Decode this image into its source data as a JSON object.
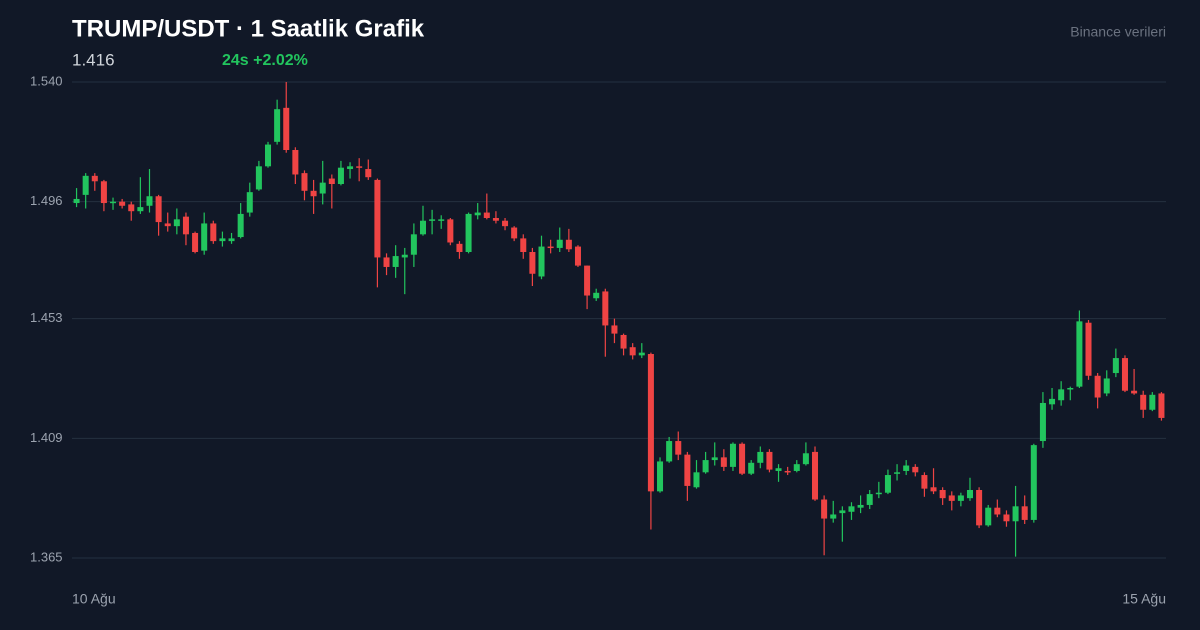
{
  "chart_data": {
    "type": "candlestick",
    "title": "TRUMP/USDT · 1 Saatlik Grafik",
    "price": "1.416",
    "change": "24s +2.02%",
    "source": "Binance verileri",
    "categories": [
      "10 Ağu",
      null,
      null,
      null,
      null,
      null,
      null,
      null,
      null,
      null,
      null,
      null,
      null,
      null,
      null,
      null,
      null,
      null,
      null,
      null,
      null,
      null,
      null,
      null,
      null,
      null,
      null,
      null,
      null,
      null,
      null,
      null,
      null,
      null,
      null,
      null,
      null,
      null,
      null,
      null,
      null,
      null,
      null,
      null,
      null,
      null,
      null,
      null,
      null,
      null,
      null,
      null,
      null,
      null,
      null,
      null,
      null,
      null,
      null,
      null,
      null,
      null,
      null,
      null,
      null,
      null,
      null,
      null,
      null,
      null,
      null,
      null,
      null,
      null,
      null,
      null,
      null,
      null,
      null,
      null,
      null,
      null,
      null,
      null,
      null,
      null,
      null,
      null,
      null,
      null,
      null,
      null,
      null,
      null,
      null,
      null,
      null,
      null,
      null,
      null,
      null,
      null,
      null,
      null,
      null,
      null,
      null,
      null,
      null,
      null,
      null,
      null,
      null,
      null,
      null,
      null,
      null,
      null,
      null,
      "15 Ağu"
    ],
    "open": [
      1.4955,
      1.4985,
      1.5055,
      1.5035,
      1.4955,
      1.496,
      1.495,
      1.4925,
      1.4945,
      1.498,
      1.488,
      1.487,
      1.4905,
      1.4845,
      1.478,
      1.488,
      1.4815,
      1.4815,
      1.483,
      1.492,
      1.5005,
      1.509,
      1.518,
      1.5305,
      1.515,
      1.5065,
      1.5,
      1.499,
      1.5045,
      1.5025,
      1.508,
      1.509,
      1.508,
      1.504,
      1.4755,
      1.472,
      1.4755,
      1.4765,
      1.484,
      1.489,
      1.489,
      1.4895,
      1.4805,
      1.4775,
      1.491,
      1.492,
      1.49,
      1.489,
      1.4865,
      1.4825,
      1.4775,
      1.4685,
      1.4795,
      1.479,
      1.482,
      1.4795,
      1.4725,
      1.4605,
      1.463,
      1.4505,
      1.447,
      1.4425,
      1.4395,
      1.44,
      1.3895,
      1.4005,
      1.408,
      1.403,
      1.391,
      1.3965,
      1.401,
      1.402,
      1.3985,
      1.407,
      1.396,
      1.4,
      1.404,
      1.397,
      1.397,
      1.397,
      1.3995,
      1.404,
      1.3865,
      1.3795,
      1.3815,
      1.382,
      1.3835,
      1.3845,
      1.3885,
      1.389,
      1.396,
      1.397,
      1.3985,
      1.3955,
      1.391,
      1.39,
      1.388,
      1.386,
      1.387,
      1.39,
      1.377,
      1.3835,
      1.381,
      1.3785,
      1.384,
      1.379,
      1.408,
      1.4215,
      1.423,
      1.427,
      1.428,
      1.4515,
      1.432,
      1.4255,
      1.433,
      1.4385,
      1.4265,
      1.425,
      1.4195,
      1.4255
    ],
    "high": [
      1.501,
      1.5065,
      1.5065,
      1.504,
      1.4975,
      1.497,
      1.496,
      1.505,
      1.508,
      1.4985,
      1.492,
      1.4935,
      1.492,
      1.485,
      1.492,
      1.489,
      1.485,
      1.4845,
      1.4955,
      1.503,
      1.511,
      1.518,
      1.5335,
      1.54,
      1.516,
      1.5075,
      1.504,
      1.511,
      1.506,
      1.511,
      1.5105,
      1.512,
      1.5115,
      1.5045,
      1.477,
      1.48,
      1.479,
      1.488,
      1.4945,
      1.493,
      1.491,
      1.49,
      1.4815,
      1.492,
      1.4955,
      1.499,
      1.4925,
      1.49,
      1.487,
      1.484,
      1.479,
      1.4835,
      1.482,
      1.4865,
      1.486,
      1.48,
      1.4725,
      1.464,
      1.464,
      1.453,
      1.4475,
      1.444,
      1.444,
      1.4405,
      1.402,
      1.4095,
      1.4115,
      1.404,
      1.401,
      1.404,
      1.4075,
      1.405,
      1.4075,
      1.4075,
      1.401,
      1.406,
      1.405,
      1.3995,
      1.3985,
      1.401,
      1.4075,
      1.406,
      1.388,
      1.386,
      1.384,
      1.3855,
      1.388,
      1.39,
      1.393,
      1.3975,
      1.3995,
      1.401,
      1.3995,
      1.3965,
      1.398,
      1.391,
      1.3895,
      1.389,
      1.3945,
      1.391,
      1.3845,
      1.3865,
      1.3825,
      1.3915,
      1.388,
      1.407,
      1.426,
      1.4275,
      1.43,
      1.428,
      1.456,
      1.4525,
      1.433,
      1.434,
      1.442,
      1.4395,
      1.4345,
      1.4265,
      1.426,
      1.426
    ],
    "low": [
      1.494,
      1.4935,
      1.5,
      1.4925,
      1.493,
      1.4935,
      1.489,
      1.4915,
      1.492,
      1.4835,
      1.485,
      1.484,
      1.48,
      1.477,
      1.4765,
      1.4805,
      1.4795,
      1.4805,
      1.4825,
      1.4905,
      1.5,
      1.5085,
      1.517,
      1.514,
      1.5025,
      1.4965,
      1.4915,
      1.495,
      1.4935,
      1.502,
      1.5045,
      1.5035,
      1.504,
      1.4645,
      1.469,
      1.468,
      1.462,
      1.472,
      1.4835,
      1.484,
      1.486,
      1.48,
      1.475,
      1.477,
      1.4895,
      1.4895,
      1.488,
      1.4855,
      1.4815,
      1.475,
      1.465,
      1.4675,
      1.477,
      1.4775,
      1.4775,
      1.472,
      1.4565,
      1.4595,
      1.439,
      1.444,
      1.4395,
      1.438,
      1.4385,
      1.3755,
      1.389,
      1.4,
      1.401,
      1.386,
      1.3905,
      1.396,
      1.399,
      1.397,
      1.397,
      1.3955,
      1.3955,
      1.398,
      1.3965,
      1.393,
      1.3955,
      1.3965,
      1.399,
      1.386,
      1.366,
      1.378,
      1.371,
      1.379,
      1.3815,
      1.383,
      1.387,
      1.3885,
      1.3935,
      1.3955,
      1.395,
      1.3875,
      1.3885,
      1.3845,
      1.3825,
      1.384,
      1.386,
      1.376,
      1.3765,
      1.38,
      1.3765,
      1.3655,
      1.3775,
      1.378,
      1.4055,
      1.4195,
      1.421,
      1.423,
      1.4275,
      1.4305,
      1.42,
      1.4245,
      1.4315,
      1.426,
      1.425,
      1.4165,
      1.419,
      1.4155
    ],
    "close": [
      1.497,
      1.5055,
      1.5035,
      1.4955,
      1.496,
      1.4945,
      1.4925,
      1.494,
      1.498,
      1.4885,
      1.487,
      1.4895,
      1.484,
      1.4775,
      1.488,
      1.4815,
      1.4825,
      1.4825,
      1.4915,
      1.4995,
      1.509,
      1.517,
      1.53,
      1.515,
      1.506,
      1.5,
      1.498,
      1.503,
      1.5025,
      1.5085,
      1.509,
      1.5085,
      1.505,
      1.4755,
      1.472,
      1.476,
      1.4765,
      1.484,
      1.489,
      1.4895,
      1.4895,
      1.481,
      1.4775,
      1.4915,
      1.492,
      1.49,
      1.489,
      1.487,
      1.4825,
      1.4775,
      1.4695,
      1.4795,
      1.479,
      1.482,
      1.4785,
      1.4725,
      1.4615,
      1.4625,
      1.4505,
      1.4475,
      1.442,
      1.4395,
      1.4405,
      1.3895,
      1.4005,
      1.408,
      1.403,
      1.3915,
      1.3965,
      1.401,
      1.402,
      1.3985,
      1.407,
      1.396,
      1.4,
      1.404,
      1.3975,
      1.398,
      1.3965,
      1.3995,
      1.4035,
      1.3865,
      1.3795,
      1.381,
      1.3825,
      1.384,
      1.3845,
      1.3885,
      1.389,
      1.3955,
      1.3965,
      1.399,
      1.3965,
      1.3905,
      1.3895,
      1.387,
      1.386,
      1.388,
      1.39,
      1.377,
      1.3835,
      1.381,
      1.3785,
      1.384,
      1.379,
      1.4065,
      1.422,
      1.4235,
      1.427,
      1.4275,
      1.452,
      1.432,
      1.424,
      1.431,
      1.4385,
      1.4265,
      1.4255,
      1.4195,
      1.425,
      1.4165
    ],
    "up_color": "#22c55e",
    "down_color": "#ef4444",
    "ylim": [
      1.365,
      1.54
    ],
    "yticks": [
      {
        "value": 1.54,
        "label": "1.540"
      },
      1.496,
      1.453,
      1.409,
      1.365
    ],
    "grid": true
  }
}
